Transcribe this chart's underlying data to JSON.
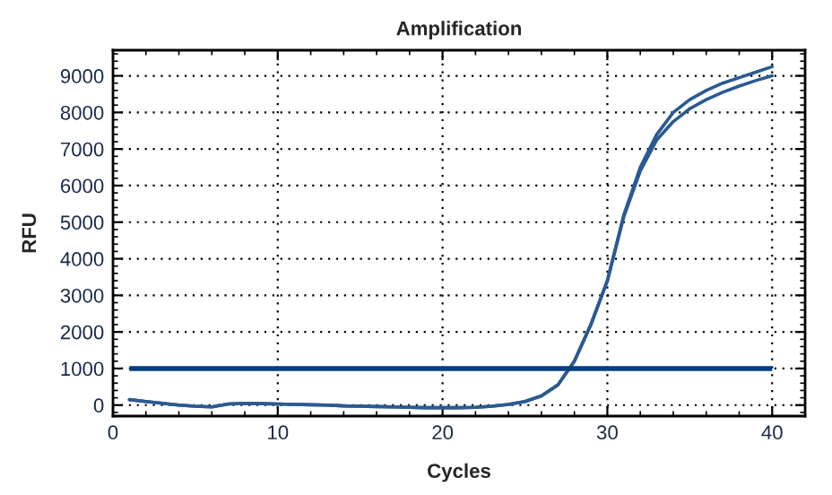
{
  "chart_data": {
    "type": "line",
    "title": "Amplification",
    "xlabel": "Cycles",
    "ylabel": "RFU",
    "x": [
      1,
      2,
      3,
      4,
      5,
      6,
      7,
      8,
      9,
      10,
      11,
      12,
      13,
      14,
      15,
      16,
      17,
      18,
      19,
      20,
      21,
      22,
      23,
      24,
      25,
      26,
      27,
      28,
      29,
      30,
      31,
      32,
      33,
      34,
      35,
      36,
      37,
      38,
      39,
      40
    ],
    "series": [
      {
        "color": "#2b5a92",
        "values": [
          150,
          100,
          50,
          0,
          -30,
          -50,
          30,
          50,
          40,
          30,
          20,
          10,
          0,
          -20,
          -30,
          -40,
          -50,
          -60,
          -70,
          -70,
          -70,
          -60,
          -30,
          20,
          100,
          250,
          550,
          1200,
          2200,
          3400,
          5200,
          6500,
          7400,
          8000,
          8350,
          8600,
          8800,
          8950,
          9100,
          9250
        ]
      },
      {
        "color": "#2b5a92",
        "values": [
          150,
          100,
          50,
          0,
          -30,
          -50,
          30,
          50,
          40,
          30,
          20,
          10,
          0,
          -20,
          -30,
          -40,
          -50,
          -60,
          -70,
          -70,
          -70,
          -60,
          -30,
          20,
          100,
          250,
          550,
          1200,
          2200,
          3400,
          5150,
          6400,
          7250,
          7750,
          8100,
          8350,
          8550,
          8720,
          8870,
          9000
        ]
      }
    ],
    "ref_lines": [
      {
        "axis": "y",
        "value": 1000,
        "color": "#003f7f"
      }
    ],
    "xlim": [
      0,
      42
    ],
    "ylim": [
      -300,
      9700
    ],
    "xticks": [
      0,
      10,
      20,
      30,
      40
    ],
    "yticks": [
      0,
      1000,
      2000,
      3000,
      4000,
      5000,
      6000,
      7000,
      8000,
      9000
    ],
    "grid": true,
    "legend": false,
    "marker": "none",
    "line_style": "solid"
  }
}
